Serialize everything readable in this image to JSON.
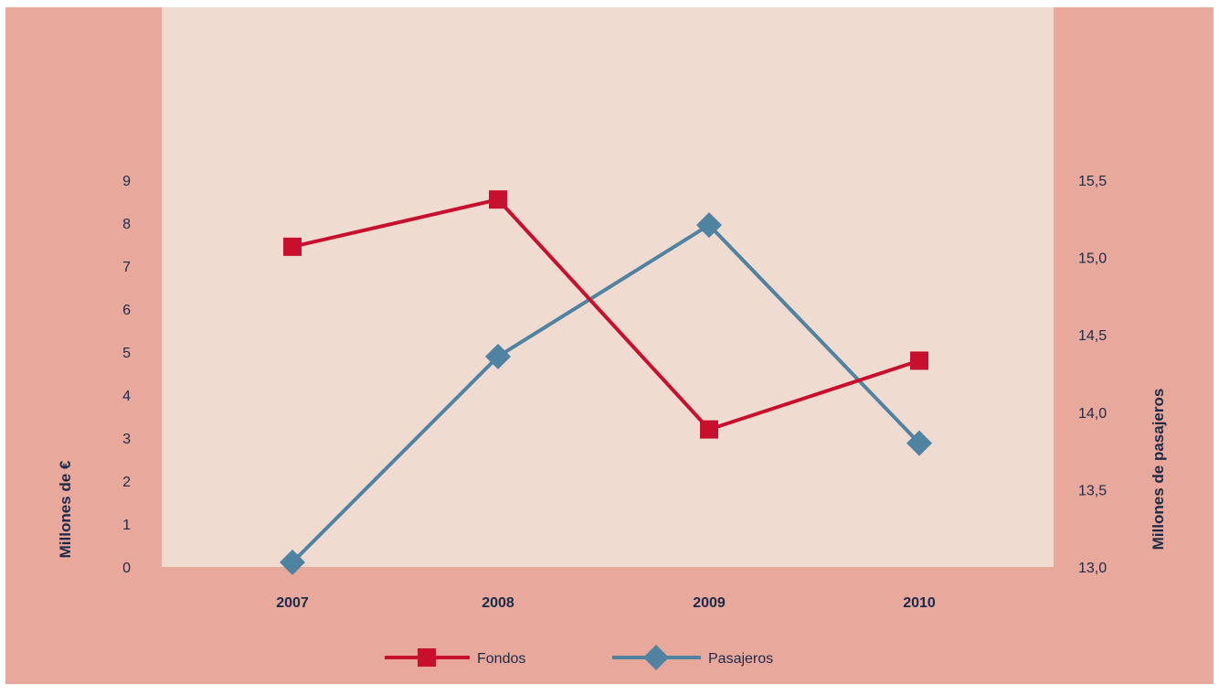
{
  "colors": {
    "outer_background": "#e8a99c",
    "plot_background": "#f0dbd0",
    "fondos": "#c8102e",
    "pasajeros": "#4f83a1",
    "text": "#1c2a4a"
  },
  "chart_data": {
    "type": "line",
    "categories": [
      "2007",
      "2008",
      "2009",
      "2010"
    ],
    "series": [
      {
        "name": "Fondos",
        "axis": "left",
        "marker": "square",
        "values": [
          7.45,
          8.55,
          3.2,
          4.8
        ]
      },
      {
        "name": "Pasajeros",
        "axis": "right",
        "marker": "diamond",
        "values": [
          13.03,
          14.36,
          15.21,
          13.8
        ]
      }
    ],
    "y_left": {
      "label": "Millones de €",
      "lim": [
        0,
        9
      ],
      "ticks": [
        "0",
        "1",
        "2",
        "3",
        "4",
        "5",
        "6",
        "7",
        "8",
        "9"
      ]
    },
    "y_right": {
      "label": "Millones de pasajeros",
      "lim": [
        13.0,
        15.5
      ],
      "ticks": [
        "13,0",
        "13,5",
        "14,0",
        "14,5",
        "15,0",
        "15,5"
      ]
    },
    "legend": {
      "position": "bottom",
      "entries": [
        "Fondos",
        "Pasajeros"
      ]
    },
    "grid": false
  }
}
